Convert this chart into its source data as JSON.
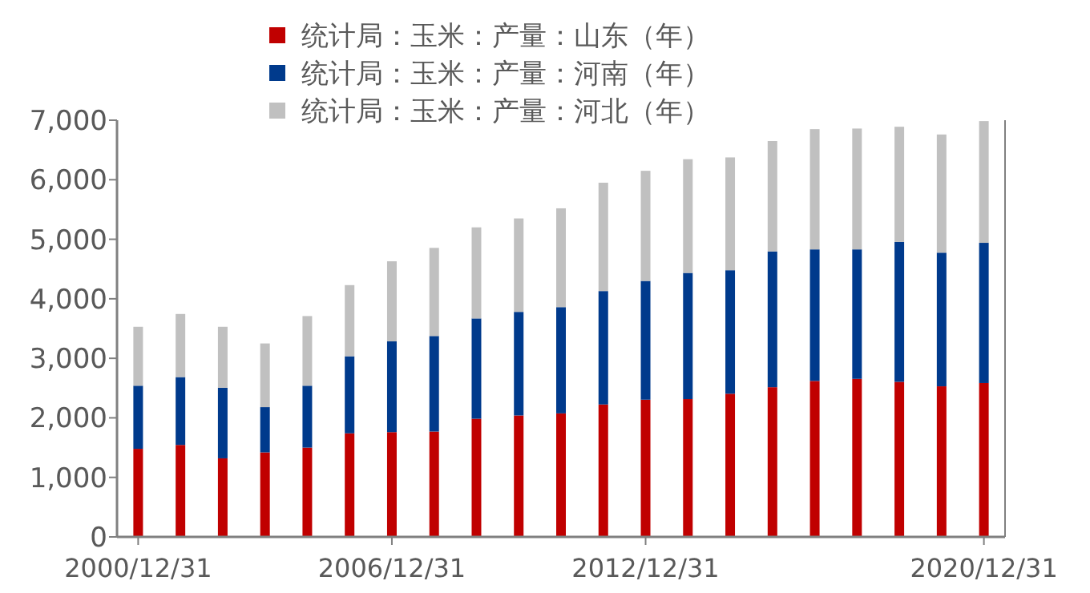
{
  "chart_data": {
    "type": "bar",
    "stacked": true,
    "categories": [
      "2000/12/31",
      null,
      null,
      null,
      null,
      null,
      "2006/12/31",
      null,
      null,
      null,
      null,
      null,
      "2012/12/31",
      null,
      null,
      null,
      null,
      null,
      null,
      null,
      "2020/12/31"
    ],
    "series": [
      {
        "name": "统计局：玉米：产量：山东（年）",
        "color": "#c00000",
        "values": [
          1480,
          1545,
          1320,
          1420,
          1500,
          1740,
          1760,
          1770,
          1985,
          2040,
          2075,
          2225,
          2305,
          2315,
          2405,
          2515,
          2620,
          2655,
          2605,
          2530,
          2585
        ]
      },
      {
        "name": "统计局：玉米：产量：河南（年）",
        "color": "#003a8c",
        "values": [
          1060,
          1140,
          1185,
          760,
          1040,
          1295,
          1525,
          1605,
          1685,
          1740,
          1785,
          1905,
          1995,
          2120,
          2075,
          2280,
          2210,
          2175,
          2350,
          2245,
          2355
        ]
      },
      {
        "name": "统计局：玉米：产量：河北（年）",
        "color": "#c0c0c0",
        "values": [
          990,
          1060,
          1025,
          1070,
          1170,
          1195,
          1345,
          1480,
          1530,
          1570,
          1660,
          1820,
          1850,
          1910,
          1895,
          1855,
          2020,
          2030,
          1935,
          1985,
          2045
        ]
      }
    ],
    "ylim": [
      0,
      7000
    ],
    "yticks": [
      0,
      {
        "value": 1000,
        "label": "1,000"
      },
      {
        "value": 2000,
        "label": "2,000"
      },
      {
        "value": 3000,
        "label": "3,000"
      },
      {
        "value": 4000,
        "label": "4,000"
      },
      {
        "value": 5000,
        "label": "5,000"
      },
      {
        "value": 6000,
        "label": "6,000"
      },
      {
        "value": 7000,
        "label": "7,000"
      }
    ],
    "grid": false,
    "legend": "top"
  }
}
